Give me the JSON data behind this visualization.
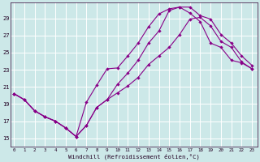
{
  "xlabel": "Windchill (Refroidissement éolien,°C)",
  "bg_color": "#cce8e8",
  "line_color": "#880088",
  "grid_color": "#ffffff",
  "x_ticks": [
    0,
    1,
    2,
    3,
    4,
    5,
    6,
    7,
    8,
    9,
    10,
    11,
    12,
    13,
    14,
    15,
    16,
    17,
    18,
    19,
    20,
    21,
    22,
    23
  ],
  "y_ticks": [
    15,
    17,
    19,
    21,
    23,
    25,
    27,
    29
  ],
  "ylim": [
    14.0,
    30.8
  ],
  "xlim": [
    -0.3,
    23.5
  ],
  "line1_y": [
    20.2,
    19.5,
    18.2,
    17.5,
    17.0,
    16.2,
    15.2,
    19.2,
    21.2,
    23.1,
    23.2,
    24.6,
    26.1,
    28.0,
    29.5,
    30.1,
    30.3,
    29.6,
    28.6,
    26.1,
    25.6,
    24.1,
    23.8,
    23.1
  ],
  "line2_y": [
    20.2,
    19.5,
    18.2,
    17.5,
    17.0,
    16.2,
    15.2,
    16.5,
    18.6,
    19.5,
    21.3,
    22.6,
    24.1,
    26.1,
    27.5,
    29.9,
    30.3,
    30.3,
    29.3,
    28.9,
    27.1,
    26.1,
    24.6,
    23.5
  ],
  "line3_y": [
    20.2,
    19.5,
    18.2,
    17.5,
    17.0,
    16.2,
    15.2,
    16.5,
    18.6,
    19.5,
    20.3,
    21.1,
    22.1,
    23.6,
    24.6,
    25.6,
    27.1,
    28.9,
    29.1,
    28.1,
    26.3,
    25.6,
    23.9,
    23.1
  ]
}
